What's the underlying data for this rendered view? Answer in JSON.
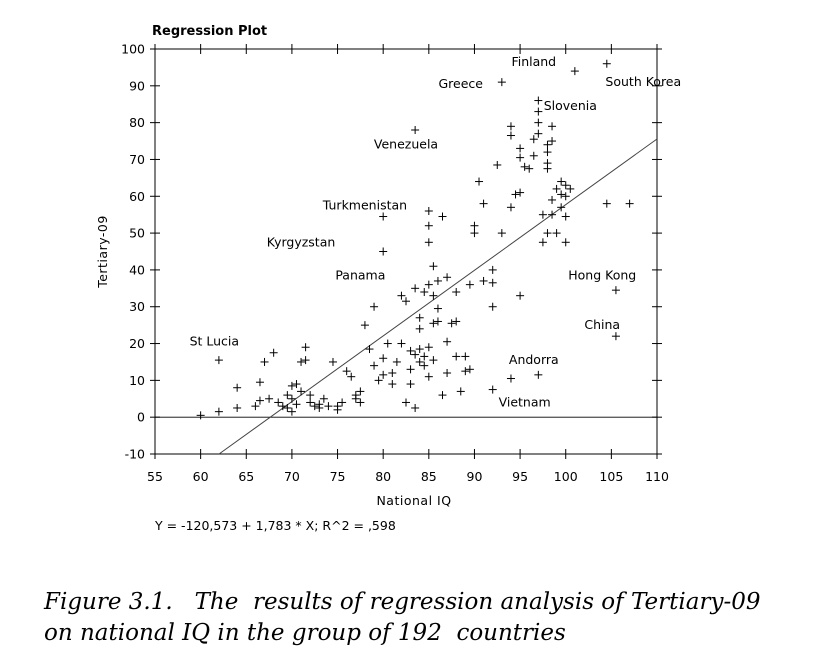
{
  "chart_data": {
    "type": "scatter",
    "title": "Regression Plot",
    "xlabel": "National IQ",
    "ylabel": "Tertiary-09",
    "xlim": [
      55,
      110
    ],
    "ylim": [
      -10,
      100
    ],
    "xticks": [
      55,
      60,
      65,
      70,
      75,
      80,
      85,
      90,
      95,
      100,
      105,
      110
    ],
    "yticks": [
      -10,
      0,
      10,
      20,
      30,
      40,
      50,
      60,
      70,
      80,
      90,
      100
    ],
    "regression": {
      "intercept": -120.573,
      "slope": 1.783,
      "equation_text": "Y = -120,573 + 1,783 * X;  R^2 = ,598"
    },
    "zero_line": 0,
    "marker": "+",
    "color": "#000000",
    "points": [
      [
        60,
        0.5
      ],
      [
        62,
        1.5
      ],
      [
        62,
        15.5
      ],
      [
        64,
        2.5
      ],
      [
        64,
        8
      ],
      [
        66,
        3
      ],
      [
        66.5,
        9.5
      ],
      [
        66.5,
        4.5
      ],
      [
        67,
        15
      ],
      [
        67.5,
        5
      ],
      [
        68,
        17.5
      ],
      [
        68.5,
        4
      ],
      [
        69,
        3
      ],
      [
        69.5,
        6
      ],
      [
        69.5,
        2.5
      ],
      [
        70,
        5
      ],
      [
        70,
        8.5
      ],
      [
        70,
        1.5
      ],
      [
        70.5,
        9
      ],
      [
        70.5,
        3.5
      ],
      [
        71,
        7
      ],
      [
        71,
        15
      ],
      [
        71.5,
        19
      ],
      [
        71.5,
        15.5
      ],
      [
        72,
        4
      ],
      [
        72,
        6
      ],
      [
        72.5,
        3
      ],
      [
        73,
        3.5
      ],
      [
        73,
        2.5
      ],
      [
        73.5,
        5
      ],
      [
        74,
        3
      ],
      [
        74.5,
        15
      ],
      [
        75,
        3
      ],
      [
        75,
        2
      ],
      [
        75.5,
        4
      ],
      [
        76,
        12.5
      ],
      [
        76.5,
        11
      ],
      [
        77,
        5
      ],
      [
        77,
        6
      ],
      [
        77.5,
        4
      ],
      [
        77.5,
        7
      ],
      [
        78,
        25
      ],
      [
        78.5,
        18.5
      ],
      [
        79,
        30
      ],
      [
        79,
        14
      ],
      [
        79.5,
        10
      ],
      [
        80,
        16
      ],
      [
        80,
        11.5
      ],
      [
        80,
        45
      ],
      [
        80,
        54.5
      ],
      [
        80.5,
        20
      ],
      [
        81,
        9
      ],
      [
        81,
        12
      ],
      [
        81.5,
        15
      ],
      [
        82,
        20
      ],
      [
        82,
        33
      ],
      [
        82.5,
        4
      ],
      [
        82.5,
        31.5
      ],
      [
        83,
        13
      ],
      [
        83,
        9
      ],
      [
        83,
        18
      ],
      [
        83.5,
        35
      ],
      [
        83.5,
        17
      ],
      [
        83.5,
        78
      ],
      [
        83.5,
        2.5
      ],
      [
        84,
        15
      ],
      [
        84,
        18.5
      ],
      [
        84,
        27
      ],
      [
        84,
        24
      ],
      [
        84.5,
        16.5
      ],
      [
        84.5,
        34
      ],
      [
        84.5,
        14
      ],
      [
        85,
        47.5
      ],
      [
        85,
        52
      ],
      [
        85,
        56
      ],
      [
        85,
        19
      ],
      [
        85,
        11
      ],
      [
        85,
        36
      ],
      [
        85.5,
        33
      ],
      [
        85.5,
        15.5
      ],
      [
        85.5,
        41
      ],
      [
        85.5,
        25.5
      ],
      [
        86,
        29.5
      ],
      [
        86,
        26
      ],
      [
        86,
        37
      ],
      [
        86.5,
        54.5
      ],
      [
        86.5,
        6
      ],
      [
        87,
        38
      ],
      [
        87,
        12
      ],
      [
        87,
        20.5
      ],
      [
        87.5,
        25.5
      ],
      [
        88,
        26
      ],
      [
        88,
        16.5
      ],
      [
        88,
        34
      ],
      [
        88.5,
        7
      ],
      [
        89,
        16.5
      ],
      [
        89,
        12.5
      ],
      [
        89.5,
        13
      ],
      [
        89.5,
        36
      ],
      [
        90,
        52
      ],
      [
        90,
        50
      ],
      [
        90.5,
        64
      ],
      [
        91,
        58
      ],
      [
        91,
        37
      ],
      [
        92,
        40
      ],
      [
        92,
        36.5
      ],
      [
        92,
        30
      ],
      [
        92,
        7.5
      ],
      [
        92.5,
        68.5
      ],
      [
        93,
        91
      ],
      [
        93,
        50
      ],
      [
        94,
        10.5
      ],
      [
        94,
        57
      ],
      [
        94,
        76.5
      ],
      [
        94,
        79
      ],
      [
        94.5,
        60.5
      ],
      [
        95,
        61
      ],
      [
        95,
        73
      ],
      [
        95,
        70.5
      ],
      [
        95,
        33
      ],
      [
        95.5,
        68
      ],
      [
        96,
        67.5
      ],
      [
        96.5,
        75.5
      ],
      [
        96.5,
        71
      ],
      [
        97,
        83
      ],
      [
        97,
        80
      ],
      [
        97,
        77
      ],
      [
        97,
        11.5
      ],
      [
        97,
        86
      ],
      [
        97.5,
        47.5
      ],
      [
        97.5,
        55
      ],
      [
        98,
        74
      ],
      [
        98,
        72
      ],
      [
        98,
        50
      ],
      [
        98,
        69
      ],
      [
        98,
        67.5
      ],
      [
        98.5,
        79
      ],
      [
        98.5,
        75
      ],
      [
        98.5,
        55
      ],
      [
        98.5,
        59
      ],
      [
        99,
        62
      ],
      [
        99,
        50
      ],
      [
        99.5,
        64
      ],
      [
        99.5,
        57
      ],
      [
        99.5,
        60.5
      ],
      [
        100,
        60
      ],
      [
        100,
        63
      ],
      [
        100,
        47.5
      ],
      [
        100,
        54.5
      ],
      [
        100.5,
        62
      ],
      [
        101,
        94
      ],
      [
        104.5,
        58
      ],
      [
        104.5,
        96
      ],
      [
        105.5,
        34.5
      ],
      [
        105.5,
        22
      ],
      [
        107,
        58
      ]
    ],
    "annotations": [
      {
        "text": "Finland",
        "x": 96.5,
        "y": 96.5
      },
      {
        "text": "South Korea",
        "x": 108.5,
        "y": 91
      },
      {
        "text": "Greece",
        "x": 88.5,
        "y": 90.5
      },
      {
        "text": "Slovenia",
        "x": 100.5,
        "y": 84.5
      },
      {
        "text": "Venezuela",
        "x": 82.5,
        "y": 74
      },
      {
        "text": "Turkmenistan",
        "x": 78,
        "y": 57.5
      },
      {
        "text": "Kyrgyzstan",
        "x": 71,
        "y": 47.5
      },
      {
        "text": "Panama",
        "x": 77.5,
        "y": 38.5
      },
      {
        "text": "Hong Kong",
        "x": 104,
        "y": 38.5
      },
      {
        "text": "China",
        "x": 104,
        "y": 25
      },
      {
        "text": "St Lucia",
        "x": 61.5,
        "y": 20.5
      },
      {
        "text": "Andorra",
        "x": 96.5,
        "y": 15.5
      },
      {
        "text": "Vietnam",
        "x": 95.5,
        "y": 4
      }
    ]
  },
  "caption": {
    "line1": "Figure 3.1.   The  results of regression analysis of Tertiary-09",
    "line2": "on national IQ in the group of 192  countries"
  }
}
